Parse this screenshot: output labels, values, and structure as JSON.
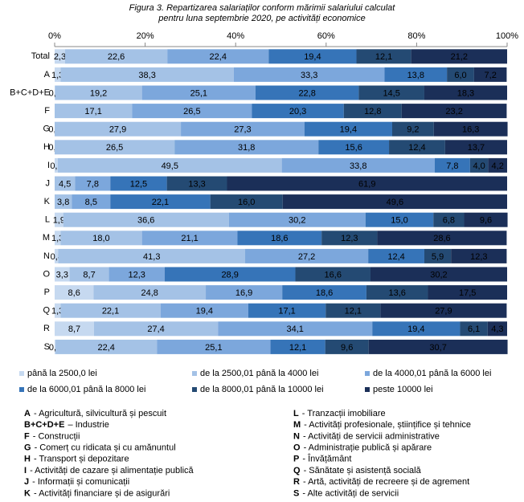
{
  "chart_data": {
    "type": "stacked_barh",
    "title_lines": [
      "Figura 3. Repartizarea salariaților conform mărimii salariului calculat",
      "pentru luna septembrie 2020, pe activități economice"
    ],
    "categories": [
      "Total",
      "A",
      "B+C+D+E",
      "F",
      "G",
      "H",
      "I",
      "J",
      "K",
      "L",
      "M",
      "N",
      "O",
      "P",
      "Q",
      "R",
      "S"
    ],
    "xlim": [
      0,
      100
    ],
    "xticks": [
      {
        "value": 0,
        "label": "0%"
      },
      {
        "value": 20,
        "label": "20%"
      },
      {
        "value": 40,
        "label": "40%"
      },
      {
        "value": 60,
        "label": "60%"
      },
      {
        "value": 80,
        "label": "80%"
      },
      {
        "value": 100,
        "label": "100%"
      }
    ],
    "series": [
      {
        "name": "până la 2500,0 lei",
        "color": "#c6d9f0",
        "values": [
          2.3,
          1.3,
          0.1,
          null,
          0.0,
          0.0,
          0.7,
          null,
          null,
          1.9,
          1.3,
          0.8,
          3.3,
          8.6,
          1.3,
          8.7,
          0.2
        ],
        "value_labels": [
          "2,3",
          "1,3",
          "0,1",
          null,
          "0,0",
          "0,0",
          "0,7",
          null,
          null,
          "1,9",
          "1,3",
          "0,8",
          "3,3",
          "8,6",
          "1,3",
          "8,7",
          "0,2"
        ]
      },
      {
        "name": "de la 2500,01 până la 4000 lei",
        "color": "#a4c2e6",
        "values": [
          22.6,
          38.3,
          19.2,
          17.1,
          27.9,
          26.5,
          49.5,
          4.5,
          3.8,
          36.6,
          18.0,
          41.3,
          8.7,
          24.8,
          22.1,
          27.4,
          22.4
        ],
        "value_labels": [
          "22,6",
          "38,3",
          "19,2",
          "17,1",
          "27,9",
          "26,5",
          "49,5",
          "4,5",
          "3,8",
          "36,6",
          "18,0",
          "41,3",
          "8,7",
          "24,8",
          "22,1",
          "27,4",
          "22,4"
        ]
      },
      {
        "name": "de la 4000,01 până la 6000 lei",
        "color": "#7ca7dc",
        "values": [
          22.4,
          33.3,
          25.1,
          26.5,
          27.3,
          31.8,
          33.8,
          7.8,
          8.5,
          30.2,
          21.1,
          27.2,
          12.3,
          16.9,
          19.4,
          34.1,
          25.1
        ],
        "value_labels": [
          "22,4",
          "33,3",
          "25,1",
          "26,5",
          "27,3",
          "31,8",
          "33,8",
          "7,8",
          "8,5",
          "30,2",
          "21,1",
          "27,2",
          "12,3",
          "16,9",
          "19,4",
          "34,1",
          "25,1"
        ]
      },
      {
        "name": "de la 6000,01 până la 8000 lei",
        "color": "#3674b8",
        "values": [
          19.4,
          13.8,
          22.8,
          20.3,
          19.4,
          15.6,
          7.8,
          12.5,
          22.1,
          15.0,
          18.6,
          12.4,
          28.9,
          18.6,
          17.1,
          19.4,
          12.1
        ],
        "value_labels": [
          "19,4",
          "13,8",
          "22,8",
          "20,3",
          "19,4",
          "15,6",
          "7,8",
          "12,5",
          "22,1",
          "15,0",
          "18,6",
          "12,4",
          "28,9",
          "18,6",
          "17,1",
          "19,4",
          "12,1"
        ]
      },
      {
        "name": "de la 8000,01 până la 10000 lei",
        "color": "#244a73",
        "values": [
          12.1,
          6.0,
          14.5,
          12.8,
          9.2,
          12.4,
          4.0,
          13.3,
          16.0,
          6.8,
          12.3,
          5.9,
          16.6,
          13.6,
          12.1,
          6.1,
          9.6
        ],
        "value_labels": [
          "12,1",
          "6,0",
          "14,5",
          "12,8",
          "9,2",
          "12,4",
          "4,0",
          "13,3",
          "16,0",
          "6,8",
          "12,3",
          "5,9",
          "16,6",
          "13,6",
          "12,1",
          "6,1",
          "9,6"
        ]
      },
      {
        "name": "peste 10000 lei",
        "color": "#1b2f58",
        "values": [
          21.2,
          7.2,
          18.3,
          23.2,
          16.3,
          13.7,
          4.2,
          61.9,
          49.6,
          9.6,
          28.6,
          12.3,
          30.2,
          17.5,
          27.9,
          4.3,
          30.7
        ],
        "value_labels": [
          "21,2",
          "7,2",
          "18,3",
          "23,2",
          "16,3",
          "13,7",
          "4,2",
          "61,9",
          "49,6",
          "9,6",
          "28,6",
          "12,3",
          "30,2",
          "17,5",
          "27,9",
          "4,3",
          "30,7"
        ]
      }
    ],
    "notes": [
      {
        "code": "A",
        "text": "- Agricultură, silvicultură și pescuit"
      },
      {
        "code": "B+C+D+E",
        "text": "– Industrie"
      },
      {
        "code": "F",
        "text": "- Construcții"
      },
      {
        "code": "G",
        "text": "- Comerț cu ridicata și cu amănuntul"
      },
      {
        "code": "H",
        "text": "- Transport și depozitare"
      },
      {
        "code": "I",
        "text": "- Activități de cazare și alimentație publică"
      },
      {
        "code": "J",
        "text": "- Informații și comunicații"
      },
      {
        "code": "K",
        "text": "- Activități financiare și de asigurări"
      },
      {
        "code": "L",
        "text": "- Tranzacții imobiliare"
      },
      {
        "code": "M",
        "text": "- Activități profesionale, științifice și tehnice"
      },
      {
        "code": "N",
        "text": "- Activități de servicii administrative"
      },
      {
        "code": "O",
        "text": "- Administrație publică și apărare"
      },
      {
        "code": "P",
        "text": "- Învățământ"
      },
      {
        "code": "Q",
        "text": "- Sănătate și asistență socială"
      },
      {
        "code": "R",
        "text": "- Artă, activități de recreere și de agrement"
      },
      {
        "code": "S",
        "text": "- Alte activități de servicii"
      }
    ]
  }
}
